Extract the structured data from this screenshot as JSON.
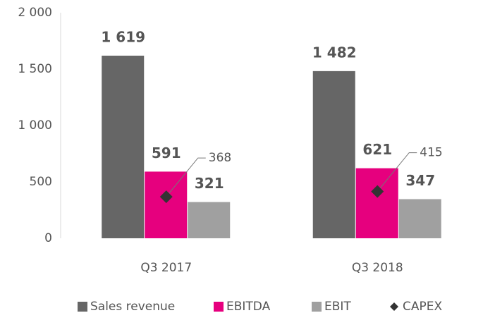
{
  "chart_data": {
    "type": "bar",
    "categories": [
      "Q3 2017",
      "Q3 2018"
    ],
    "series": [
      {
        "name": "Sales revenue",
        "color": "#666666",
        "values": [
          1619,
          1482
        ],
        "value_labels": [
          "1 619",
          "1 482"
        ]
      },
      {
        "name": "EBITDA",
        "color": "#e6007e",
        "values": [
          591,
          621
        ]
      },
      {
        "name": "EBIT",
        "color": "#a0a0a0",
        "values": [
          321,
          347
        ]
      },
      {
        "name": "CAPEX",
        "color": "#333333",
        "values": [
          368,
          415
        ],
        "marker": "diamond"
      }
    ],
    "ylim": [
      0,
      2000
    ],
    "yticks": [
      0,
      500,
      {
        "value": 1000,
        "label": "1 000"
      },
      {
        "value": 1500,
        "label": "1 500"
      },
      {
        "value": 2000,
        "label": "2 000"
      }
    ],
    "grid": false,
    "legend": "bottom"
  }
}
